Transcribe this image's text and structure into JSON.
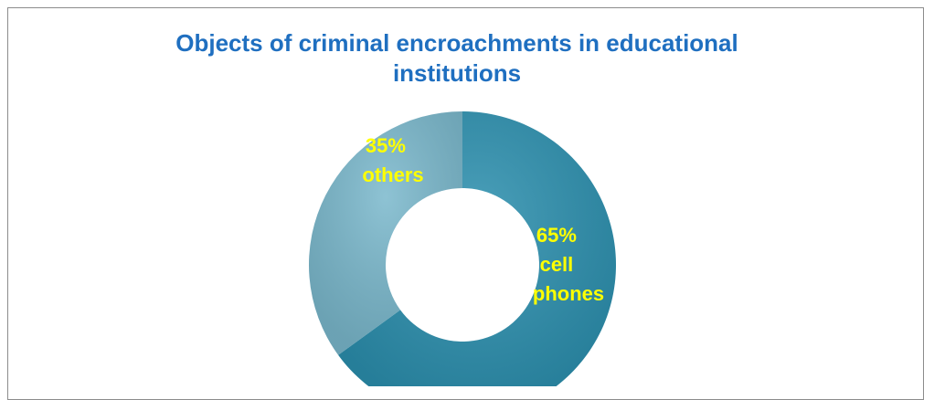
{
  "chart_data": {
    "type": "pie",
    "variant": "donut",
    "title_lines": [
      "Objects of criminal encroachments in educational",
      "institutions"
    ],
    "slices": [
      {
        "label_lines": [
          "65%",
          "cell",
          "phones"
        ],
        "value": 65,
        "color": "#2b8fae"
      },
      {
        "label_lines": [
          "35%",
          "others"
        ],
        "value": 35,
        "color": "#7ab8cc"
      }
    ]
  },
  "colors": {
    "title": "#1f6fc0",
    "label": "#ffff00",
    "frame_border": "#8c8c8c"
  }
}
